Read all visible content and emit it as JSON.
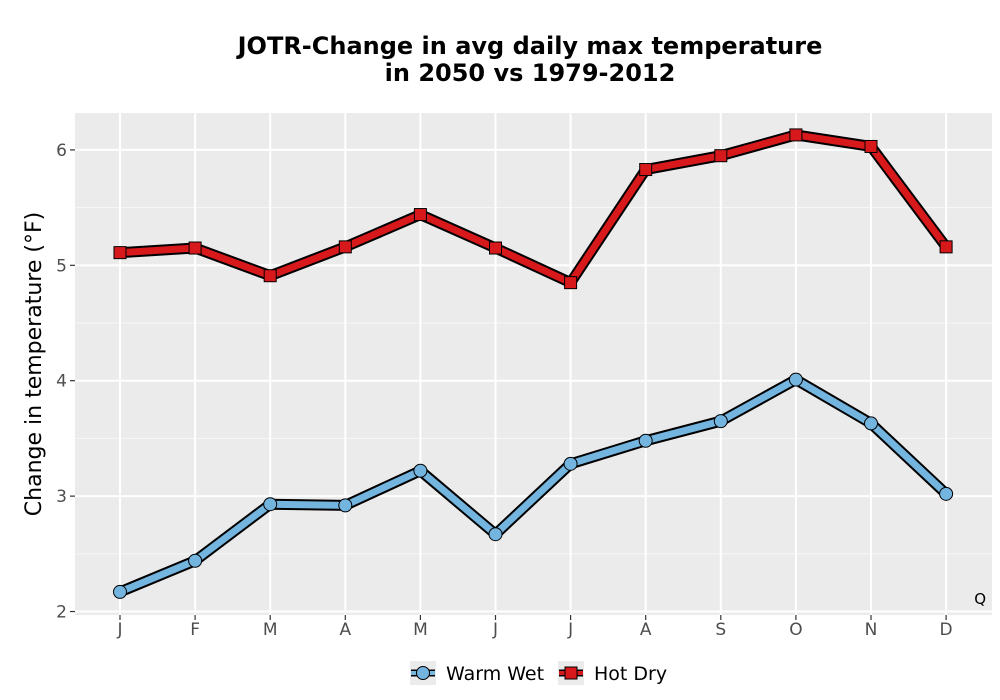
{
  "chart_data": {
    "type": "line",
    "title_line1": "JOTR-Change in avg daily max temperature",
    "title_line2": "in 2050 vs 1979-2012",
    "xlabel": "",
    "ylabel": "Change in temperature (°F)",
    "categories": [
      "J",
      "F",
      "M",
      "A",
      "M",
      "J",
      "J",
      "A",
      "S",
      "O",
      "N",
      "D"
    ],
    "ylim": [
      1.97,
      6.32
    ],
    "yticks": [
      2,
      3,
      4,
      5,
      6
    ],
    "grid": true,
    "legend_position": "bottom",
    "corner_label": "Q",
    "series": [
      {
        "name": "Warm Wet",
        "color": "#74b5e0",
        "marker": "circle",
        "values": [
          2.17,
          2.44,
          2.93,
          2.92,
          3.22,
          2.67,
          3.28,
          3.48,
          3.65,
          4.01,
          3.63,
          3.02
        ]
      },
      {
        "name": "Hot Dry",
        "color": "#d7191c",
        "marker": "square",
        "values": [
          5.11,
          5.15,
          4.91,
          5.16,
          5.44,
          5.15,
          4.85,
          5.83,
          5.95,
          6.13,
          6.03,
          5.16
        ]
      }
    ]
  }
}
